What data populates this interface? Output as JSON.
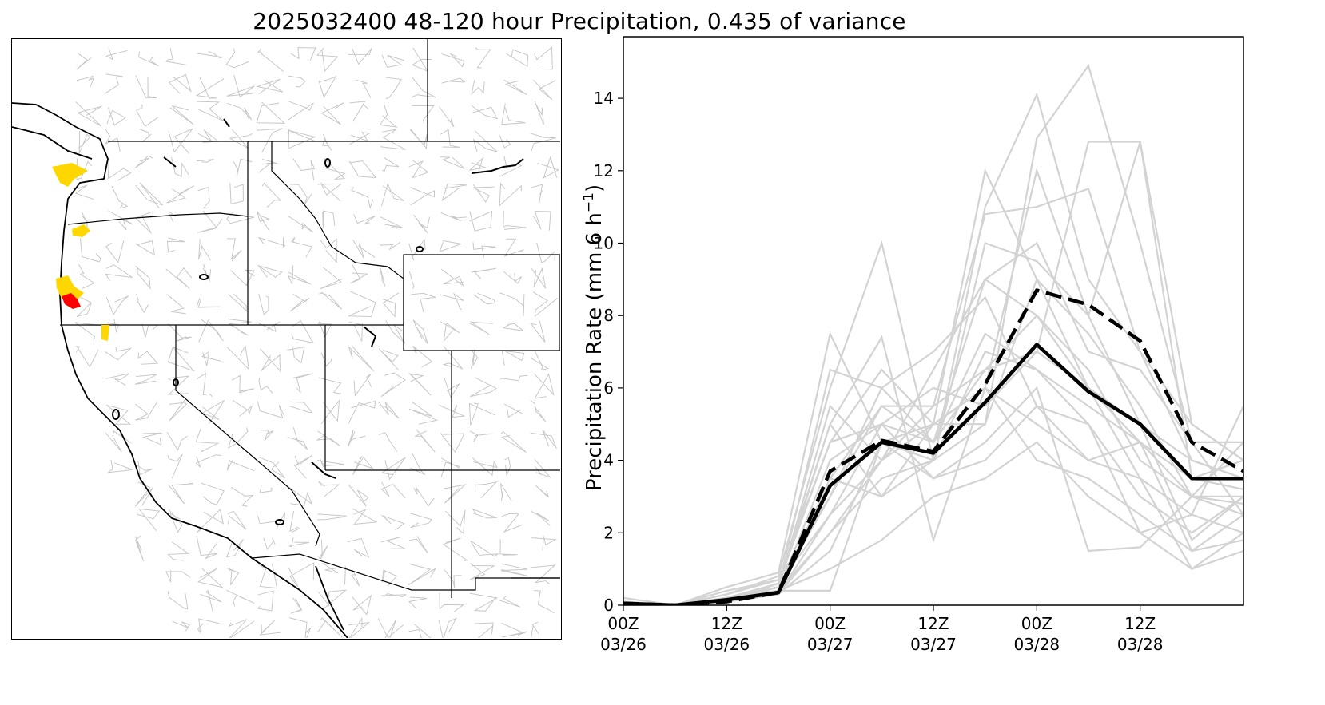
{
  "figure": {
    "title": "2025032400 48-120 hour Precipitation, 0.435 of variance"
  },
  "map": {
    "highlight_colors": {
      "moderate": "#FFD700",
      "strong": "#FF0000"
    },
    "basin_line_color": "#c8c8c8",
    "boundary_color": "#000000"
  },
  "chart_data": {
    "type": "line",
    "ylabel": "Precipitation Rate (mm 6 h",
    "ylabel_sup": "−1",
    "ylabel_end": ")",
    "ylim": [
      0,
      15.7
    ],
    "yticks": [
      0,
      2,
      4,
      6,
      8,
      10,
      12,
      14
    ],
    "xlim": [
      0,
      72
    ],
    "xticks": [
      {
        "x": 0,
        "line1": "00Z",
        "line2": "03/26"
      },
      {
        "x": 12,
        "line1": "12Z",
        "line2": "03/26"
      },
      {
        "x": 24,
        "line1": "00Z",
        "line2": "03/27"
      },
      {
        "x": 36,
        "line1": "12Z",
        "line2": "03/27"
      },
      {
        "x": 48,
        "line1": "00Z",
        "line2": "03/28"
      },
      {
        "x": 60,
        "line1": "12Z",
        "line2": "03/28"
      }
    ],
    "x": [
      0,
      6,
      12,
      18,
      24,
      30,
      36,
      42,
      48,
      54,
      60,
      66,
      72
    ],
    "ensemble_color": "#d3d3d3",
    "ensemble": [
      [
        0.2,
        0.0,
        0.5,
        0.9,
        7.5,
        4.5,
        5.0,
        12.0,
        9.0,
        6.0,
        4.5,
        3.0,
        2.8
      ],
      [
        0.1,
        0.0,
        0.3,
        0.8,
        6.0,
        10.0,
        4.0,
        11.0,
        14.1,
        9.0,
        7.0,
        4.0,
        3.5
      ],
      [
        0.0,
        0.0,
        0.2,
        0.6,
        5.0,
        7.4,
        1.8,
        6.0,
        12.0,
        8.0,
        12.8,
        5.0,
        4.0
      ],
      [
        0.0,
        0.0,
        0.4,
        0.7,
        4.5,
        6.5,
        5.0,
        5.0,
        12.9,
        14.9,
        10.0,
        4.5,
        2.5
      ],
      [
        0.0,
        0.0,
        0.1,
        0.5,
        3.0,
        5.5,
        5.5,
        10.8,
        11.0,
        11.5,
        7.0,
        5.0,
        4.0
      ],
      [
        0.0,
        0.0,
        0.2,
        0.4,
        0.4,
        4.5,
        4.0,
        10.0,
        9.5,
        8.0,
        5.0,
        1.8,
        3.0
      ],
      [
        0.0,
        0.0,
        0.1,
        0.6,
        2.5,
        5.0,
        4.5,
        6.5,
        7.0,
        12.8,
        12.8,
        3.5,
        4.0
      ],
      [
        0.0,
        0.0,
        0.2,
        0.3,
        2.0,
        4.0,
        6.5,
        9.0,
        8.0,
        6.0,
        3.5,
        1.0,
        2.0
      ],
      [
        0.0,
        0.0,
        0.1,
        0.3,
        3.5,
        3.0,
        5.0,
        6.0,
        5.0,
        4.0,
        4.5,
        1.5,
        1.8
      ],
      [
        0.0,
        0.0,
        0.2,
        0.5,
        6.5,
        6.0,
        7.0,
        8.5,
        5.5,
        5.0,
        2.0,
        2.5,
        5.5
      ],
      [
        0.0,
        0.0,
        0.1,
        0.4,
        4.0,
        5.0,
        3.5,
        4.5,
        6.0,
        1.5,
        1.6,
        3.0,
        3.0
      ],
      [
        0.0,
        0.0,
        0.2,
        0.5,
        5.5,
        4.0,
        5.0,
        6.0,
        4.0,
        3.5,
        2.5,
        1.5,
        2.5
      ],
      [
        0.0,
        0.0,
        0.3,
        0.7,
        3.0,
        6.0,
        4.5,
        9.0,
        10.0,
        7.0,
        6.5,
        4.5,
        4.5
      ],
      [
        0.0,
        0.0,
        0.1,
        0.4,
        2.0,
        3.5,
        4.0,
        7.0,
        6.5,
        5.0,
        3.0,
        2.0,
        3.0
      ],
      [
        0.0,
        0.0,
        0.2,
        0.6,
        4.5,
        5.0,
        6.0,
        5.5,
        7.0,
        6.0,
        5.0,
        4.0,
        3.5
      ],
      [
        0.0,
        0.0,
        0.1,
        0.3,
        1.5,
        4.5,
        3.5,
        4.0,
        5.5,
        4.0,
        3.5,
        2.5,
        2.0
      ],
      [
        0.0,
        0.0,
        0.1,
        0.3,
        2.5,
        4.0,
        5.5,
        6.5,
        8.0,
        6.5,
        4.0,
        3.0,
        2.5
      ],
      [
        0.0,
        0.0,
        0.2,
        0.4,
        3.5,
        5.5,
        4.5,
        7.5,
        6.5,
        5.5,
        4.5,
        3.5,
        3.2
      ],
      [
        0.0,
        0.0,
        0.1,
        0.5,
        5.0,
        3.0,
        4.0,
        5.0,
        9.0,
        7.5,
        5.5,
        3.0,
        4.5
      ],
      [
        0.0,
        0.0,
        0.2,
        0.4,
        1.0,
        1.8,
        3.0,
        3.5,
        4.5,
        3.0,
        2.0,
        1.0,
        1.5
      ]
    ],
    "series": [
      {
        "values": [
          0.05,
          0.0,
          0.15,
          0.35,
          3.3,
          4.5,
          4.2,
          5.6,
          7.2,
          5.9,
          5.0,
          3.5,
          3.5
        ],
        "color": "#000000",
        "dash": "solid"
      },
      {
        "values": [
          0.05,
          0.0,
          0.1,
          0.35,
          3.7,
          4.55,
          4.25,
          6.1,
          8.7,
          8.3,
          7.3,
          4.5,
          3.7
        ],
        "color": "#000000",
        "dash": "dashed"
      }
    ]
  }
}
